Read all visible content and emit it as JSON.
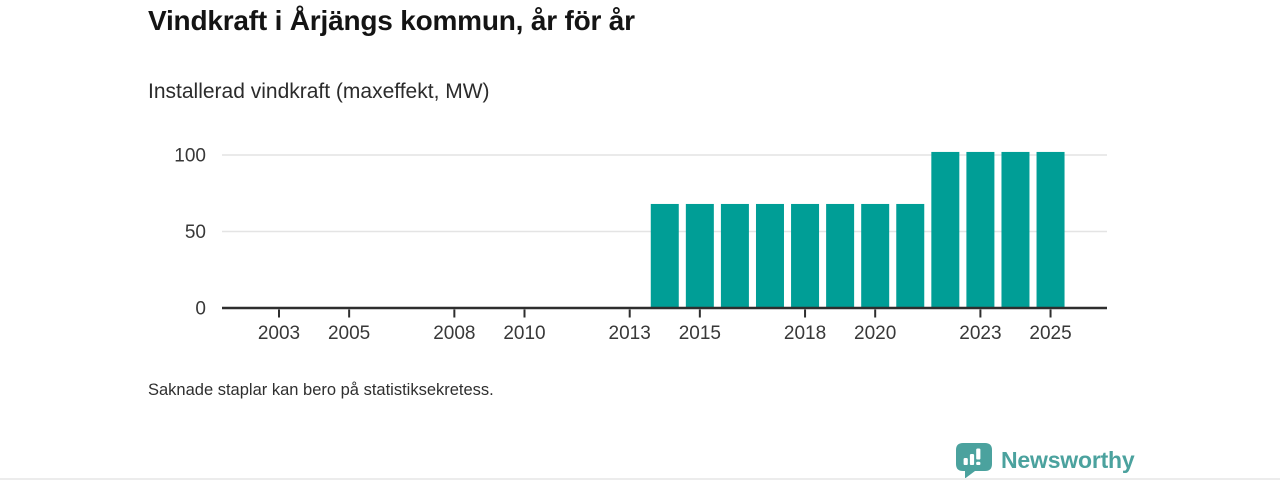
{
  "page": {
    "title": "Vindkraft i Årjängs kommun, år för år",
    "subtitle": "Installerad vindkraft (maxeffekt, MW)",
    "footnote": "Saknade staplar kan bero på statistiksekretess."
  },
  "branding": {
    "logo_text": "Newsworthy",
    "logo_icon": "speech-bubble-bar-chart-icon",
    "logo_color": "#4BA29E"
  },
  "colors": {
    "bar": "#009E96",
    "axis": "#2E2E2E",
    "gridline": "#E4E4E4",
    "tick_label": "#383838"
  },
  "chart_data": {
    "type": "bar",
    "title": "Vindkraft i Årjängs kommun, år för år",
    "subtitle": "Installerad vindkraft (maxeffekt, MW)",
    "ylabel": "MW",
    "xlabel": "",
    "x_domain": [
      2001.5,
      2026.5
    ],
    "x_ticks": [
      2003,
      2005,
      2008,
      2010,
      2013,
      2015,
      2018,
      2020,
      2023,
      2025
    ],
    "y_ticks": [
      0,
      50,
      100
    ],
    "ylim": [
      0,
      110
    ],
    "grid": "horizontal",
    "legend": "none",
    "series": [
      {
        "name": "Installerad vindkraft (maxeffekt, MW)",
        "points": [
          {
            "year": 2014,
            "value": 68
          },
          {
            "year": 2015,
            "value": 68
          },
          {
            "year": 2016,
            "value": 68
          },
          {
            "year": 2017,
            "value": 68
          },
          {
            "year": 2018,
            "value": 68
          },
          {
            "year": 2019,
            "value": 68
          },
          {
            "year": 2020,
            "value": 68
          },
          {
            "year": 2021,
            "value": 68
          },
          {
            "year": 2022,
            "value": 102
          },
          {
            "year": 2023,
            "value": 102
          },
          {
            "year": 2024,
            "value": 102
          },
          {
            "year": 2025,
            "value": 102
          }
        ]
      }
    ]
  }
}
